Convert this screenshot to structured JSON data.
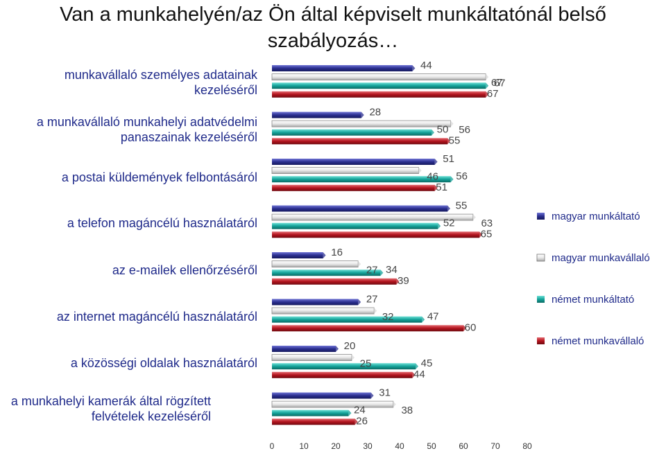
{
  "chart_data": {
    "type": "bar",
    "orientation": "horizontal",
    "title": "Van a munkahelyén/az Ön által képviselt munkáltatónál belső szabályozás…",
    "categories": [
      "munkavállaló személyes adatainak kezeléséről",
      "a munkavállaló munkahelyi adatvédelmi panaszainak kezeléséről",
      "a postai küldemények felbontásáról",
      "a telefon magáncélú használatáról",
      "az e-mailek ellenőrzéséről",
      "az internet magáncélú használatáról",
      "a közösségi oldalak használatáról",
      "a munkahelyi kamerák által rögzített felvételek kezeléséről"
    ],
    "series": [
      {
        "name": "magyar munkáltató",
        "color": "#2b2f8f",
        "values": [
          44,
          28,
          51,
          55,
          16,
          27,
          20,
          31
        ]
      },
      {
        "name": "magyar munkavállaló",
        "color": "#d9d9d9",
        "values": [
          67,
          56,
          46,
          63,
          27,
          32,
          25,
          38
        ]
      },
      {
        "name": "német munkáltató",
        "color": "#14a39a",
        "values": [
          67,
          50,
          56,
          52,
          34,
          47,
          45,
          24
        ]
      },
      {
        "name": "német munkavállaló",
        "color": "#b3141e",
        "values": [
          67,
          55,
          51,
          65,
          39,
          60,
          44,
          26
        ]
      }
    ],
    "xlim": [
      0,
      80
    ],
    "xticks": [
      "0",
      "10",
      "20",
      "30",
      "40",
      "50",
      "60",
      "70",
      "80"
    ],
    "legend_position": "right",
    "grid": false
  }
}
